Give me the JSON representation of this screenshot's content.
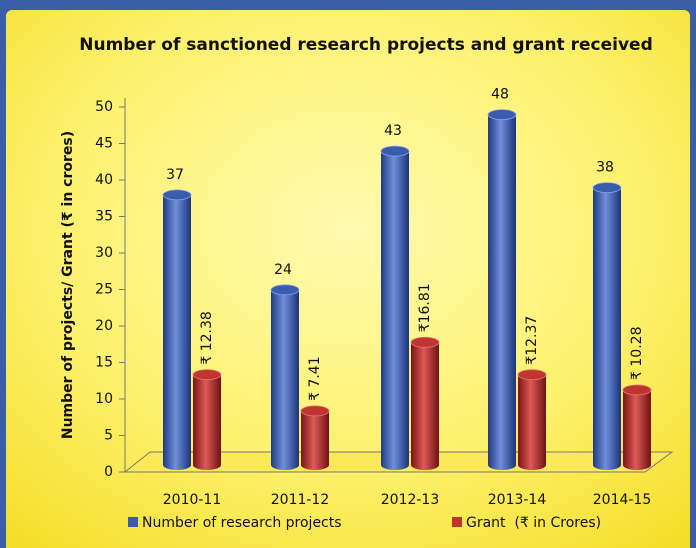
{
  "chart_data": {
    "type": "bar",
    "title": "Number of sanctioned research projects and grant received",
    "y_label": "Number of projects/ Grant (₹ in crores)",
    "categories": [
      "2010-11",
      "2011-12",
      "2012-13",
      "2013-14",
      "2014-15"
    ],
    "series": [
      {
        "name": "Number of research projects",
        "color": "#3a5cb0",
        "values": [
          37,
          24,
          43,
          48,
          38
        ]
      },
      {
        "name": "Grant  (₹ in Crores)",
        "color": "#c0352f",
        "values": [
          12.38,
          7.41,
          16.81,
          12.37,
          10.28
        ],
        "value_labels": [
          "₹ 12.38",
          "₹ 7.41",
          "₹16.81",
          "₹12.37",
          "₹ 10.28"
        ]
      }
    ],
    "ylim": [
      0,
      50
    ],
    "yticks": [
      0,
      5,
      10,
      15,
      20,
      25,
      30,
      35,
      40,
      45,
      50
    ],
    "grid": false
  }
}
